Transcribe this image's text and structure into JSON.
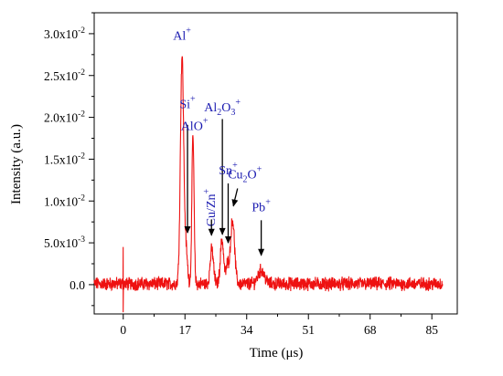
{
  "chart_data": {
    "type": "line",
    "xlabel": "Time (μs)",
    "ylabel": "Intensity (a.u.)",
    "xlim": [
      -8,
      92
    ],
    "ylim": [
      -0.0035,
      0.0325
    ],
    "x_ticks": [
      0,
      17,
      34,
      51,
      68,
      85
    ],
    "x_tick_labels": [
      "0",
      "17",
      "34",
      "51",
      "68",
      "85"
    ],
    "y_ticks": [
      0,
      0.005,
      0.01,
      0.015,
      0.02,
      0.025,
      0.03
    ],
    "y_tick_labels": [
      {
        "base": "0.0",
        "exp": ""
      },
      {
        "base": "5.0x10",
        "exp": "-3"
      },
      {
        "base": "1.0x10",
        "exp": "-2"
      },
      {
        "base": "1.5x10",
        "exp": "-2"
      },
      {
        "base": "2.0x10",
        "exp": "-2"
      },
      {
        "base": "2.5x10",
        "exp": "-2"
      },
      {
        "base": "3.0x10",
        "exp": "-2"
      }
    ],
    "series": [
      {
        "color": "#ee1111",
        "noise_x_range": [
          -8,
          88
        ],
        "baseline": 0.0001,
        "peaks": [
          {
            "x": 0.0,
            "y": 0.0045,
            "width": 0.07,
            "kind": "spike"
          },
          {
            "x": 16.2,
            "y": 0.0272,
            "width": 0.45
          },
          {
            "x": 17.3,
            "y": 0.0038,
            "width": 0.4
          },
          {
            "x": 19.2,
            "y": 0.0177,
            "width": 0.3
          },
          {
            "x": 24.4,
            "y": 0.0041,
            "width": 0.45
          },
          {
            "x": 27.2,
            "y": 0.0053,
            "width": 0.45
          },
          {
            "x": 28.7,
            "y": 0.0022,
            "width": 0.4
          },
          {
            "x": 30.1,
            "y": 0.0077,
            "width": 0.55
          },
          {
            "x": 38.0,
            "y": 0.0016,
            "width": 0.9
          }
        ]
      }
    ],
    "annotations": [
      {
        "id": "al",
        "ion": "Al",
        "sub": "",
        "sup": "+",
        "x": 16.2,
        "y": 0.0293,
        "arrow": false
      },
      {
        "id": "si",
        "ion": "Si",
        "sub": "",
        "sup": "+",
        "x": 17.7,
        "y": 0.0211,
        "arrow": true,
        "arrow_from": 0.0191,
        "arrow_to": 0.0061
      },
      {
        "id": "alo",
        "ion": "AlO",
        "sub": "",
        "sup": "+",
        "x": 19.6,
        "y": 0.0185,
        "arrow": false
      },
      {
        "id": "cuzn",
        "ion": "Cu/Zn",
        "sub": "",
        "sup": "+",
        "x": 24.3,
        "y": 0.0092,
        "arrow": true,
        "arrow_from": 0.0078,
        "arrow_to": 0.0058,
        "vertical": true
      },
      {
        "id": "al2o3",
        "ion": "Al",
        "sub": "2",
        "ion2": "O",
        "sub2": "3",
        "sup": "+",
        "x": 27.3,
        "y": 0.0207,
        "arrow": true,
        "arrow_from": 0.0198,
        "arrow_to": 0.0059
      },
      {
        "id": "sn",
        "ion": "Sn",
        "sub": "",
        "sup": "+",
        "x": 28.9,
        "y": 0.0132,
        "arrow": true,
        "arrow_from": 0.0121,
        "arrow_to": 0.0049
      },
      {
        "id": "cu2o",
        "ion": "Cu",
        "sub": "2",
        "ion2": "O",
        "sup": "+",
        "x": 33.5,
        "y": 0.0127,
        "arrow": true,
        "arrow_from": 0.0115,
        "arrow_to": 0.0093,
        "arrow_x": 30.3
      },
      {
        "id": "pb",
        "ion": "Pb",
        "sub": "",
        "sup": "+",
        "x": 38.0,
        "y": 0.0088,
        "arrow": true,
        "arrow_from": 0.0077,
        "arrow_to": 0.0034
      }
    ]
  }
}
